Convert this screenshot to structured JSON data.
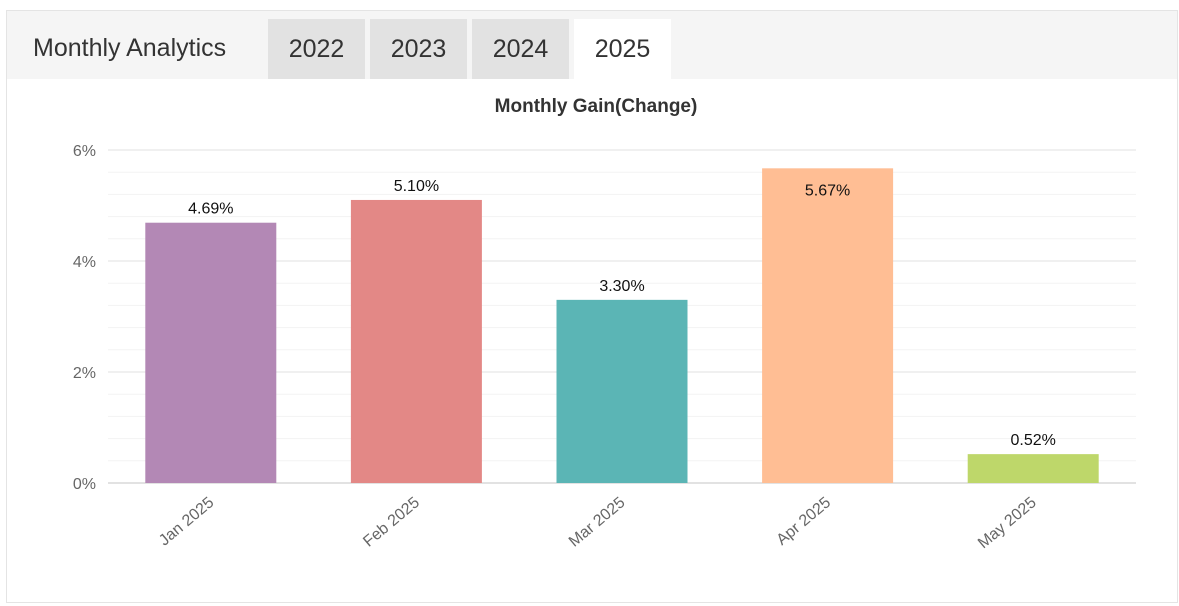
{
  "header": {
    "title": "Monthly Analytics",
    "tabs": [
      {
        "label": "2022",
        "active": false
      },
      {
        "label": "2023",
        "active": false
      },
      {
        "label": "2024",
        "active": false
      },
      {
        "label": "2025",
        "active": true
      }
    ]
  },
  "chart_data": {
    "type": "bar",
    "title": "Monthly Gain(Change)",
    "categories": [
      "Jan 2025",
      "Feb 2025",
      "Mar 2025",
      "Apr 2025",
      "May 2025"
    ],
    "values": [
      4.69,
      5.1,
      3.3,
      5.67,
      0.52
    ],
    "data_labels": [
      "4.69%",
      "5.10%",
      "3.30%",
      "5.67%",
      "0.52%"
    ],
    "colors": [
      "#b388b5",
      "#e38886",
      "#5bb5b5",
      "#ffbe94",
      "#bed76a"
    ],
    "yticks": [
      0,
      2,
      4,
      6
    ],
    "ytick_labels": [
      "0%",
      "2%",
      "4%",
      "6%"
    ],
    "ylim": [
      0,
      6
    ],
    "xlabel": "",
    "ylabel": "",
    "grid": true,
    "legend": "none"
  }
}
